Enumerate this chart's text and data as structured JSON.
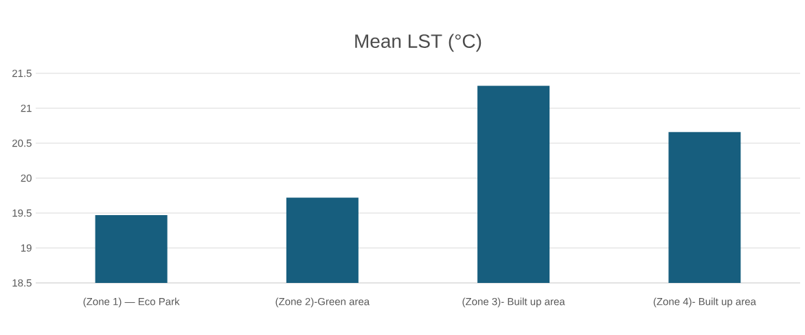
{
  "chart_data": {
    "type": "bar",
    "title": "Mean LST (°C)",
    "categories": [
      "(Zone 1) — Eco Park",
      "(Zone 2)-Green area",
      "(Zone 3)- Built up area",
      "(Zone 4)- Built up area"
    ],
    "values": [
      19.47,
      19.72,
      21.32,
      20.66
    ],
    "color": "#175e7e",
    "ylim": [
      18.5,
      21.5
    ],
    "yticks": [
      18.5,
      19,
      19.5,
      20,
      20.5,
      21,
      21.5
    ],
    "grid": "y"
  }
}
